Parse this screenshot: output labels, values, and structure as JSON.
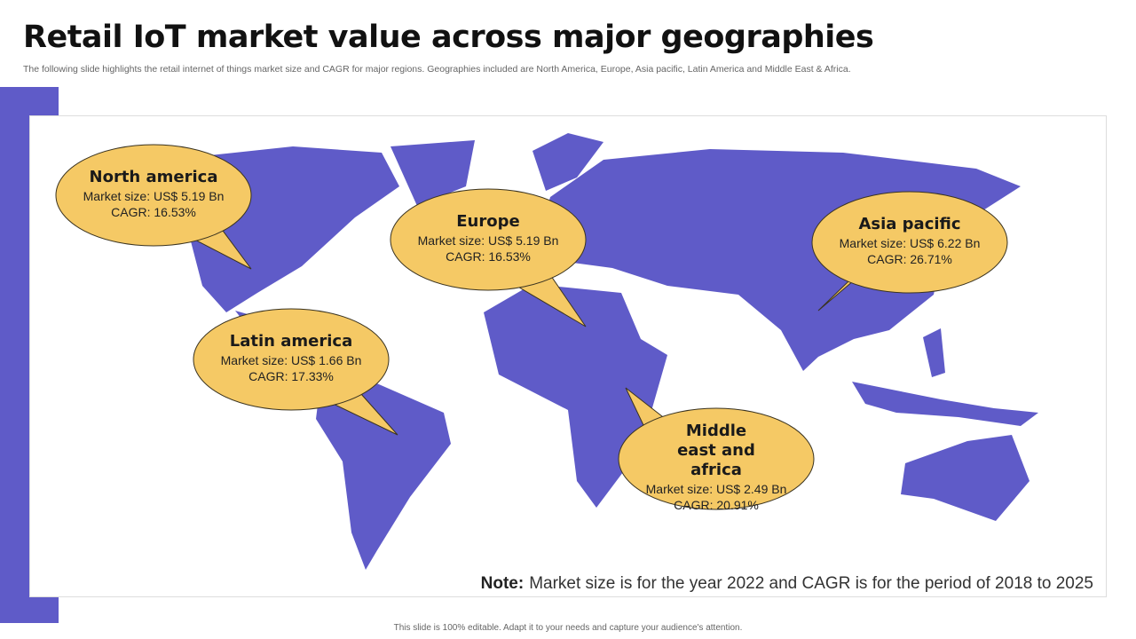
{
  "header": {
    "title": "Retail IoT market value across major geographies",
    "subtitle": "The following slide highlights the retail internet of things market size and CAGR for major regions. Geographies included are North America, Europe, Asia pacific, Latin America and Middle East & Africa."
  },
  "callouts": [
    {
      "region": "North america",
      "market_size": "Market size: US$ 5.19 Bn",
      "cagr": "CAGR: 16.53%"
    },
    {
      "region": "Europe",
      "market_size": "Market size: US$ 5.19 Bn",
      "cagr": "CAGR: 16.53%"
    },
    {
      "region": "Asia pacific",
      "market_size": "Market size: US$ 6.22 Bn",
      "cagr": "CAGR: 26.71%"
    },
    {
      "region": "Latin america",
      "market_size": "Market size: US$ 1.66 Bn",
      "cagr": "CAGR: 17.33%"
    },
    {
      "region": "Middle east and africa",
      "market_size": "Market size: US$ 2.49 Bn",
      "cagr": "CAGR: 20.91%"
    }
  ],
  "note": {
    "label": "Note:",
    "text": "Market size is for the year 2022 and CAGR is for the period of 2018 to 2025"
  },
  "footer": "This slide is 100% editable. Adapt it to your needs and capture your audience's attention."
}
